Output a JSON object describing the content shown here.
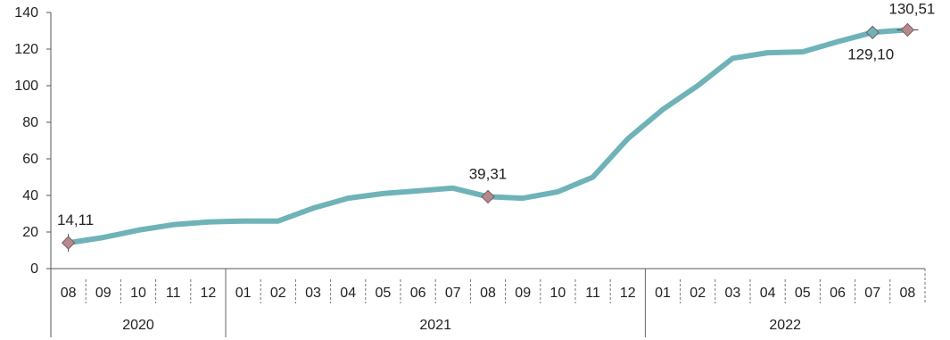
{
  "chart_data": {
    "type": "line",
    "title": "",
    "xlabel": "",
    "ylabel": "",
    "ylim": [
      0,
      140
    ],
    "yticks": [
      "0",
      "20",
      "40",
      "60",
      "80",
      "100",
      "120",
      "140"
    ],
    "grid": false,
    "months": [
      "08",
      "09",
      "10",
      "11",
      "12",
      "01",
      "02",
      "03",
      "04",
      "05",
      "06",
      "07",
      "08",
      "09",
      "10",
      "11",
      "12",
      "01",
      "02",
      "03",
      "04",
      "05",
      "06",
      "07",
      "08"
    ],
    "years": [
      {
        "label": "2020",
        "start": 0,
        "end": 4
      },
      {
        "label": "2021",
        "start": 5,
        "end": 16
      },
      {
        "label": "2022",
        "start": 17,
        "end": 24
      }
    ],
    "series": [
      {
        "color": "#6fb3b8",
        "values": [
          14.11,
          17,
          21,
          24,
          25.5,
          26,
          26,
          33,
          38.5,
          41,
          42.5,
          44,
          39.31,
          38.5,
          42,
          50,
          71,
          87,
          100,
          115,
          118,
          118.5,
          124,
          129.1,
          130.51
        ]
      }
    ],
    "markers": [
      {
        "index": 0,
        "label": "14,11",
        "color": "#b58a8f"
      },
      {
        "index": 12,
        "label": "39,31",
        "color": "#b58a8f"
      },
      {
        "index": 23,
        "label": "129,10",
        "color": "#6fb3b8"
      },
      {
        "index": 24,
        "label": "130,51",
        "color": "#b58a8f"
      }
    ]
  }
}
